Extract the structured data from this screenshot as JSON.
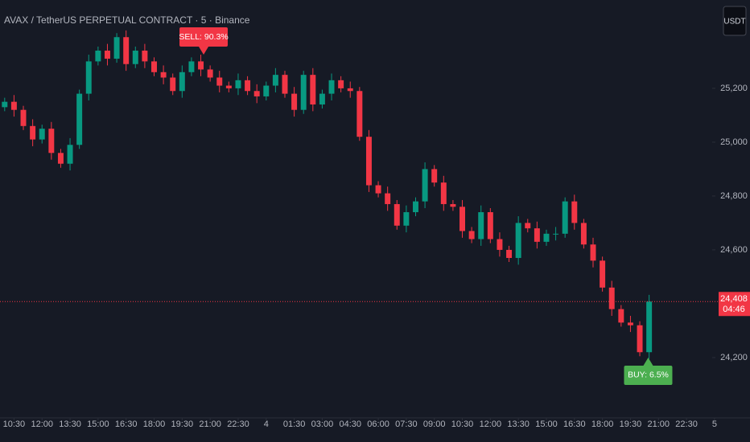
{
  "chart_data": {
    "type": "candlestick",
    "title": "AVAX / TetherUS PERPETUAL CONTRACT · 5 · Binance",
    "currency_button": "USDT",
    "up_color": "#089981",
    "down_color": "#f23645",
    "xlim": [
      0,
      80.3
    ],
    "ylim": [
      23976,
      25528
    ],
    "yticks": [
      {
        "value": 24200,
        "label": "24,200"
      },
      {
        "value": 24600,
        "label": "24,600"
      },
      {
        "value": 24800,
        "label": "24,800"
      },
      {
        "value": 25000,
        "label": "25,000"
      },
      {
        "value": 25200,
        "label": "25,200"
      }
    ],
    "xticks": [
      {
        "value": 1.5,
        "label": "10:30"
      },
      {
        "value": 4.5,
        "label": "12:00"
      },
      {
        "value": 7.5,
        "label": "13:30"
      },
      {
        "value": 10.5,
        "label": "15:00"
      },
      {
        "value": 13.5,
        "label": "16:30"
      },
      {
        "value": 16.5,
        "label": "18:00"
      },
      {
        "value": 19.5,
        "label": "19:30"
      },
      {
        "value": 22.5,
        "label": "21:00"
      },
      {
        "value": 25.5,
        "label": "22:30"
      },
      {
        "value": 28.5,
        "label": "4"
      },
      {
        "value": 31.5,
        "label": "01:30"
      },
      {
        "value": 34.5,
        "label": "03:00"
      },
      {
        "value": 37.5,
        "label": "04:30"
      },
      {
        "value": 40.5,
        "label": "06:00"
      },
      {
        "value": 43.5,
        "label": "07:30"
      },
      {
        "value": 46.5,
        "label": "09:00"
      },
      {
        "value": 49.5,
        "label": "10:30"
      },
      {
        "value": 52.5,
        "label": "12:00"
      },
      {
        "value": 55.5,
        "label": "13:30"
      },
      {
        "value": 58.5,
        "label": "15:00"
      },
      {
        "value": 61.5,
        "label": "16:30"
      },
      {
        "value": 64.5,
        "label": "18:00"
      },
      {
        "value": 67.5,
        "label": "19:30"
      },
      {
        "value": 70.5,
        "label": "21:00"
      },
      {
        "value": 73.5,
        "label": "22:30"
      },
      {
        "value": 76.5,
        "label": "5"
      }
    ],
    "candles": [
      [
        25130,
        25165,
        25115,
        25150
      ],
      [
        25150,
        25175,
        25095,
        25120
      ],
      [
        25120,
        25135,
        25045,
        25060
      ],
      [
        25060,
        25085,
        24985,
        25010
      ],
      [
        25010,
        25065,
        24995,
        25050
      ],
      [
        25050,
        25075,
        24935,
        24960
      ],
      [
        24960,
        24975,
        24905,
        24920
      ],
      [
        24920,
        25015,
        24895,
        24990
      ],
      [
        24990,
        25195,
        24975,
        25180
      ],
      [
        25180,
        25325,
        25155,
        25300
      ],
      [
        25300,
        25355,
        25285,
        25340
      ],
      [
        25340,
        25365,
        25285,
        25310
      ],
      [
        25310,
        25405,
        25295,
        25390
      ],
      [
        25390,
        25415,
        25265,
        25290
      ],
      [
        25290,
        25355,
        25275,
        25340
      ],
      [
        25340,
        25365,
        25275,
        25300
      ],
      [
        25300,
        25315,
        25245,
        25260
      ],
      [
        25260,
        25285,
        25215,
        25240
      ],
      [
        25240,
        25255,
        25175,
        25190
      ],
      [
        25190,
        25285,
        25165,
        25260
      ],
      [
        25260,
        25315,
        25245,
        25300
      ],
      [
        25300,
        25325,
        25245,
        25270
      ],
      [
        25270,
        25285,
        25225,
        25240
      ],
      [
        25240,
        25265,
        25185,
        25210
      ],
      [
        25210,
        25225,
        25185,
        25200
      ],
      [
        25200,
        25255,
        25175,
        25230
      ],
      [
        25230,
        25245,
        25175,
        25190
      ],
      [
        25190,
        25215,
        25145,
        25170
      ],
      [
        25170,
        25225,
        25155,
        25210
      ],
      [
        25210,
        25275,
        25185,
        25250
      ],
      [
        25250,
        25265,
        25165,
        25180
      ],
      [
        25180,
        25205,
        25095,
        25120
      ],
      [
        25120,
        25265,
        25105,
        25250
      ],
      [
        25250,
        25275,
        25115,
        25140
      ],
      [
        25140,
        25195,
        25125,
        25180
      ],
      [
        25180,
        25255,
        25155,
        25230
      ],
      [
        25230,
        25245,
        25185,
        25200
      ],
      [
        25200,
        25225,
        25165,
        25190
      ],
      [
        25190,
        25205,
        25005,
        25020
      ],
      [
        25020,
        25045,
        24815,
        24840
      ],
      [
        24840,
        24855,
        24795,
        24810
      ],
      [
        24810,
        24835,
        24745,
        24770
      ],
      [
        24770,
        24785,
        24675,
        24690
      ],
      [
        24690,
        24765,
        24665,
        24740
      ],
      [
        24740,
        24795,
        24725,
        24780
      ],
      [
        24780,
        24925,
        24755,
        24900
      ],
      [
        24900,
        24915,
        24835,
        24850
      ],
      [
        24850,
        24875,
        24745,
        24770
      ],
      [
        24770,
        24785,
        24745,
        24760
      ],
      [
        24760,
        24785,
        24645,
        24670
      ],
      [
        24670,
        24685,
        24625,
        24640
      ],
      [
        24640,
        24765,
        24615,
        24740
      ],
      [
        24740,
        24755,
        24625,
        24640
      ],
      [
        24640,
        24665,
        24575,
        24600
      ],
      [
        24600,
        24615,
        24555,
        24570
      ],
      [
        24570,
        24725,
        24545,
        24700
      ],
      [
        24700,
        24715,
        24665,
        24680
      ],
      [
        24680,
        24705,
        24605,
        24630
      ],
      [
        24630,
        24675,
        24615,
        24660
      ],
      [
        24660,
        24685,
        24635,
        24660
      ],
      [
        24660,
        24795,
        24645,
        24780
      ],
      [
        24780,
        24805,
        24675,
        24700
      ],
      [
        24700,
        24715,
        24605,
        24620
      ],
      [
        24620,
        24645,
        24535,
        24560
      ],
      [
        24560,
        24575,
        24445,
        24460
      ],
      [
        24460,
        24485,
        24355,
        24380
      ],
      [
        24380,
        24395,
        24315,
        24330
      ],
      [
        24330,
        24355,
        24295,
        24320
      ],
      [
        24320,
        24335,
        24205,
        24220
      ],
      [
        24220,
        24433,
        24195,
        24408
      ]
    ],
    "annotations": [
      {
        "text": "SELL: 90.3%",
        "x": 21.8,
        "y": 25325,
        "color": "#f23645",
        "side": "above"
      },
      {
        "text": "BUY: 6.5%",
        "x": 69.4,
        "y": 24200,
        "color": "#4caf50",
        "side": "below"
      }
    ],
    "last_price": {
      "value": 24408,
      "label": "24,408",
      "countdown": "04:46",
      "color": "#f23645"
    }
  }
}
